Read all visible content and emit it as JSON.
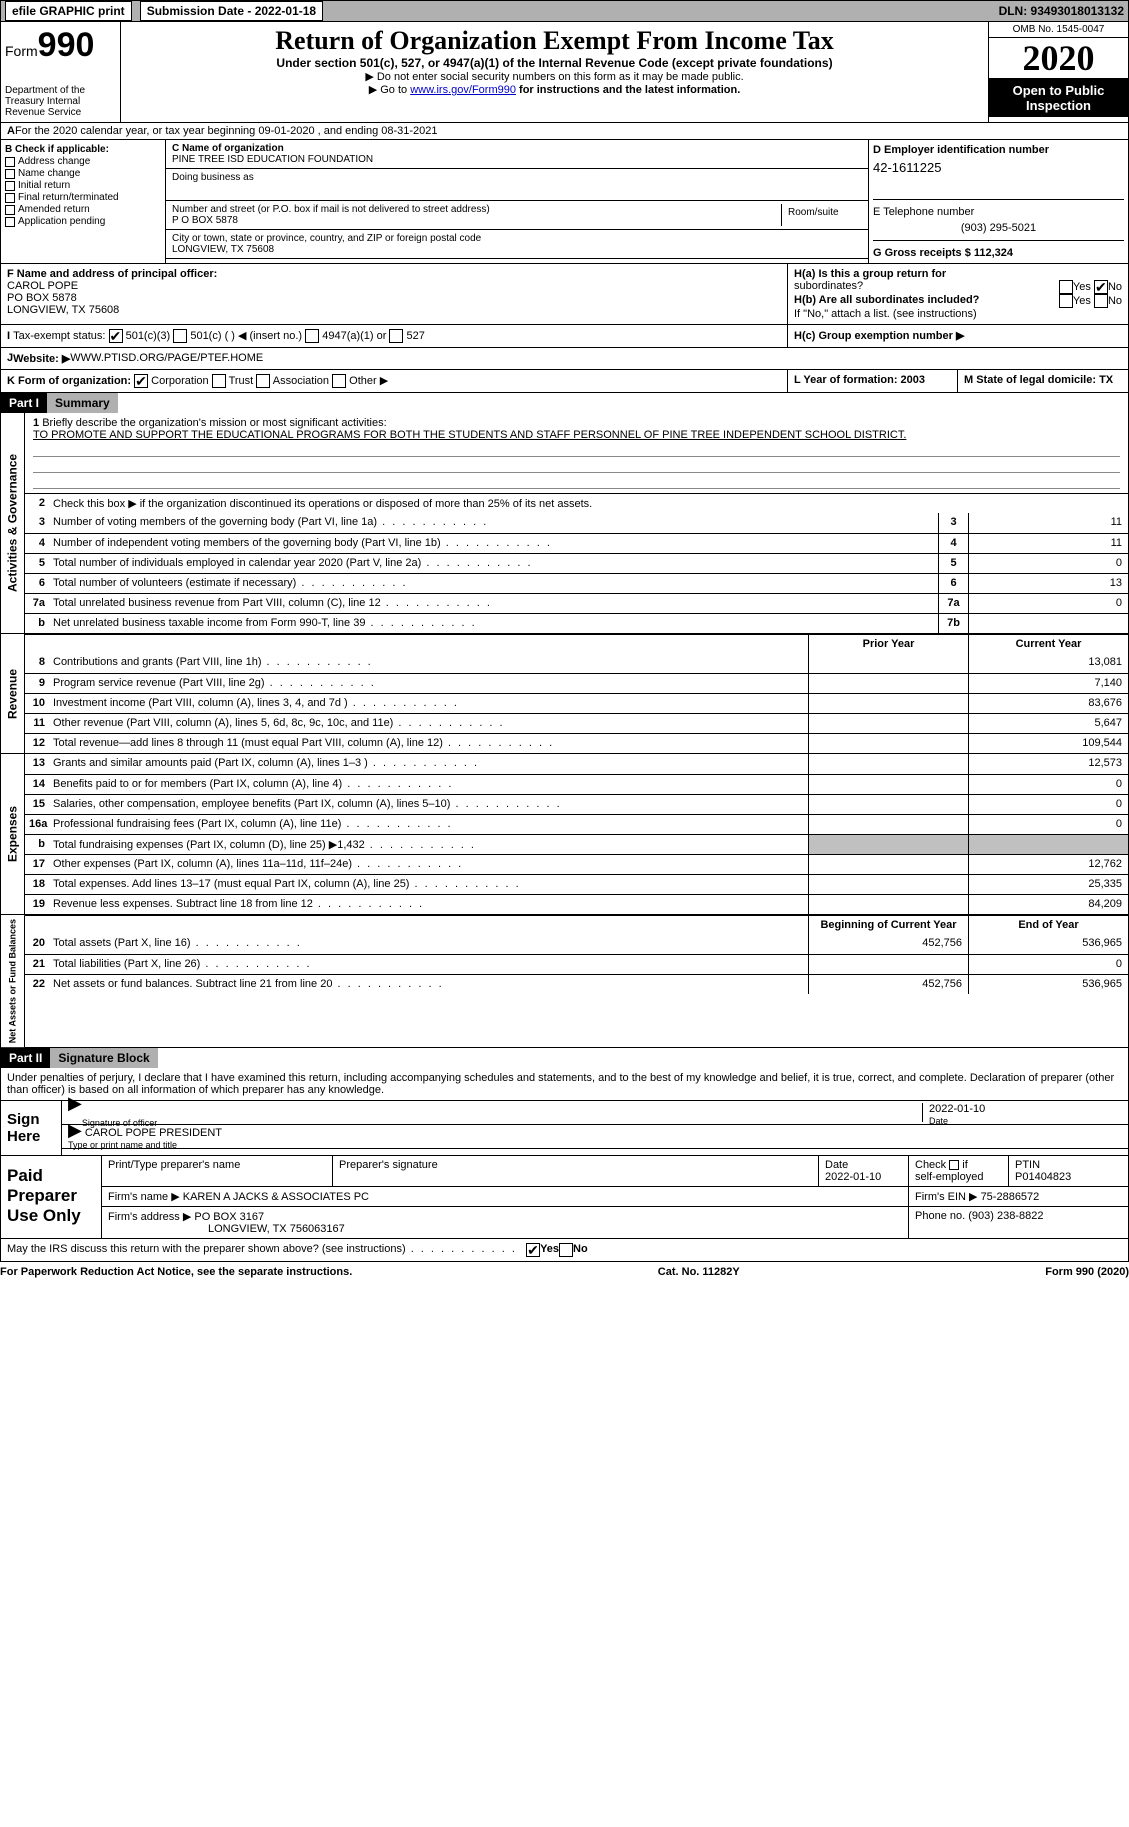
{
  "topbar": {
    "efile": "efile GRAPHIC print",
    "submission_label": "Submission Date - 2022-01-18",
    "dln_label": "DLN: 93493018013132"
  },
  "header": {
    "form_label": "Form",
    "form_number": "990",
    "dept": "Department of the Treasury\nInternal Revenue Service",
    "title": "Return of Organization Exempt From Income Tax",
    "sub": "Under section 501(c), 527, or 4947(a)(1) of the Internal Revenue Code (except private foundations)",
    "nosocial": "▶ Do not enter social security numbers on this form as it may be made public.",
    "goto_pre": "▶ Go to ",
    "goto_link": "www.irs.gov/Form990",
    "goto_post": " for instructions and the latest information.",
    "omb": "OMB No. 1545-0047",
    "year": "2020",
    "inspection": "Open to Public Inspection"
  },
  "sectionA": {
    "text": "For the 2020 calendar year, or tax year beginning 09-01-2020   , and ending 08-31-2021"
  },
  "sectionB": {
    "label": "B Check if applicable:",
    "items": [
      "Address change",
      "Name change",
      "Initial return",
      "Final return/terminated",
      "Amended return",
      "Application pending"
    ]
  },
  "sectionC": {
    "name_label": "C Name of organization",
    "name": "PINE TREE ISD EDUCATION FOUNDATION",
    "dba_label": "Doing business as",
    "addr_label": "Number and street (or P.O. box if mail is not delivered to street address)",
    "room_label": "Room/suite",
    "addr": "P O BOX 5878",
    "city_label": "City or town, state or province, country, and ZIP or foreign postal code",
    "city": "LONGVIEW, TX  75608"
  },
  "sectionD": {
    "label": "D Employer identification number",
    "ein": "42-1611225"
  },
  "sectionE": {
    "label": "E Telephone number",
    "phone": "(903) 295-5021"
  },
  "sectionG": {
    "label": "G Gross receipts $ 112,324"
  },
  "sectionF": {
    "label": "F  Name and address of principal officer:",
    "name": "CAROL POPE",
    "addr1": "PO BOX 5878",
    "addr2": "LONGVIEW, TX  75608"
  },
  "sectionH": {
    "a_label": "H(a)  Is this a group return for",
    "a_sub": "subordinates?",
    "b_label": "H(b)  Are all subordinates included?",
    "b_note": "If \"No,\" attach a list. (see instructions)",
    "c_label": "H(c)  Group exemption number ▶",
    "yes": "Yes",
    "no": "No"
  },
  "taxExempt": {
    "label": "Tax-exempt status:",
    "opt1": "501(c)(3)",
    "opt2": "501(c) (  ) ◀ (insert no.)",
    "opt3": "4947(a)(1) or",
    "opt4": "527"
  },
  "website": {
    "label": "Website: ▶",
    "value": "WWW.PTISD.ORG/PAGE/PTEF.HOME"
  },
  "sectionK": {
    "label": "K Form of organization:",
    "opts": [
      "Corporation",
      "Trust",
      "Association",
      "Other ▶"
    ]
  },
  "sectionL": {
    "label": "L Year of formation: 2003"
  },
  "sectionM": {
    "label": "M State of legal domicile: TX"
  },
  "part1": {
    "hdr": "Part I",
    "title": "Summary",
    "mission_label": "Briefly describe the organization's mission or most significant activities:",
    "mission": "TO PROMOTE AND SUPPORT THE EDUCATIONAL PROGRAMS FOR BOTH THE STUDENTS AND STAFF PERSONNEL OF PINE TREE INDEPENDENT SCHOOL DISTRICT.",
    "line2": "Check this box ▶      if the organization discontinued its operations or disposed of more than 25% of its net assets.",
    "prior_hdr": "Prior Year",
    "curr_hdr": "Current Year",
    "boy_hdr": "Beginning of Current Year",
    "eoy_hdr": "End of Year"
  },
  "gov_lines": [
    {
      "n": "3",
      "t": "Number of voting members of the governing body (Part VI, line 1a)",
      "box": "3",
      "v": "11"
    },
    {
      "n": "4",
      "t": "Number of independent voting members of the governing body (Part VI, line 1b)",
      "box": "4",
      "v": "11"
    },
    {
      "n": "5",
      "t": "Total number of individuals employed in calendar year 2020 (Part V, line 2a)",
      "box": "5",
      "v": "0"
    },
    {
      "n": "6",
      "t": "Total number of volunteers (estimate if necessary)",
      "box": "6",
      "v": "13"
    },
    {
      "n": "7a",
      "t": "Total unrelated business revenue from Part VIII, column (C), line 12",
      "box": "7a",
      "v": "0"
    },
    {
      "n": "b",
      "t": "Net unrelated business taxable income from Form 990-T, line 39",
      "box": "7b",
      "v": ""
    }
  ],
  "rev_lines": [
    {
      "n": "8",
      "t": "Contributions and grants (Part VIII, line 1h)",
      "c": "13,081"
    },
    {
      "n": "9",
      "t": "Program service revenue (Part VIII, line 2g)",
      "c": "7,140"
    },
    {
      "n": "10",
      "t": "Investment income (Part VIII, column (A), lines 3, 4, and 7d )",
      "c": "83,676"
    },
    {
      "n": "11",
      "t": "Other revenue (Part VIII, column (A), lines 5, 6d, 8c, 9c, 10c, and 11e)",
      "c": "5,647"
    },
    {
      "n": "12",
      "t": "Total revenue—add lines 8 through 11 (must equal Part VIII, column (A), line 12)",
      "c": "109,544"
    }
  ],
  "exp_lines": [
    {
      "n": "13",
      "t": "Grants and similar amounts paid (Part IX, column (A), lines 1–3 )",
      "c": "12,573"
    },
    {
      "n": "14",
      "t": "Benefits paid to or for members (Part IX, column (A), line 4)",
      "c": "0"
    },
    {
      "n": "15",
      "t": "Salaries, other compensation, employee benefits (Part IX, column (A), lines 5–10)",
      "c": "0"
    },
    {
      "n": "16a",
      "t": "Professional fundraising fees (Part IX, column (A), line 11e)",
      "c": "0"
    },
    {
      "n": "b",
      "t": "Total fundraising expenses (Part IX, column (D), line 25) ▶1,432",
      "grey": true
    },
    {
      "n": "17",
      "t": "Other expenses (Part IX, column (A), lines 11a–11d, 11f–24e)",
      "c": "12,762"
    },
    {
      "n": "18",
      "t": "Total expenses. Add lines 13–17 (must equal Part IX, column (A), line 25)",
      "c": "25,335"
    },
    {
      "n": "19",
      "t": "Revenue less expenses. Subtract line 18 from line 12",
      "c": "84,209"
    }
  ],
  "net_lines": [
    {
      "n": "20",
      "t": "Total assets (Part X, line 16)",
      "p": "452,756",
      "c": "536,965"
    },
    {
      "n": "21",
      "t": "Total liabilities (Part X, line 26)",
      "p": "",
      "c": "0"
    },
    {
      "n": "22",
      "t": "Net assets or fund balances. Subtract line 21 from line 20",
      "p": "452,756",
      "c": "536,965"
    }
  ],
  "vert_labels": {
    "gov": "Activities & Governance",
    "rev": "Revenue",
    "exp": "Expenses",
    "net": "Net Assets or Fund Balances"
  },
  "part2": {
    "hdr": "Part II",
    "title": "Signature Block",
    "penalty": "Under penalties of perjury, I declare that I have examined this return, including accompanying schedules and statements, and to the best of my knowledge and belief, it is true, correct, and complete. Declaration of preparer (other than officer) is based on all information of which preparer has any knowledge."
  },
  "sign": {
    "label": "Sign Here",
    "sig_label": "Signature of officer",
    "date_label": "Date",
    "date": "2022-01-10",
    "name": "CAROL POPE PRESIDENT",
    "name_label": "Type or print name and title"
  },
  "paid": {
    "label": "Paid Preparer Use Only",
    "col1": "Print/Type preparer's name",
    "col2": "Preparer's signature",
    "col3_lbl": "Date",
    "col3": "2022-01-10",
    "col4_lbl": "Check",
    "col4_sub": "self-employed",
    "col5_lbl": "PTIN",
    "col5": "P01404823",
    "firm_name_lbl": "Firm's name    ▶",
    "firm_name": "KAREN A JACKS & ASSOCIATES PC",
    "firm_ein_lbl": "Firm's EIN ▶",
    "firm_ein": "75-2886572",
    "firm_addr_lbl": "Firm's address ▶",
    "firm_addr": "PO BOX 3167",
    "firm_addr2": "LONGVIEW, TX  756063167",
    "phone_lbl": "Phone no.",
    "phone": "(903) 238-8822"
  },
  "discuss": {
    "text": "May the IRS discuss this return with the preparer shown above? (see instructions)",
    "yes": "Yes",
    "no": "No"
  },
  "footer": {
    "left": "For Paperwork Reduction Act Notice, see the separate instructions.",
    "mid": "Cat. No. 11282Y",
    "right": "Form 990 (2020)"
  }
}
